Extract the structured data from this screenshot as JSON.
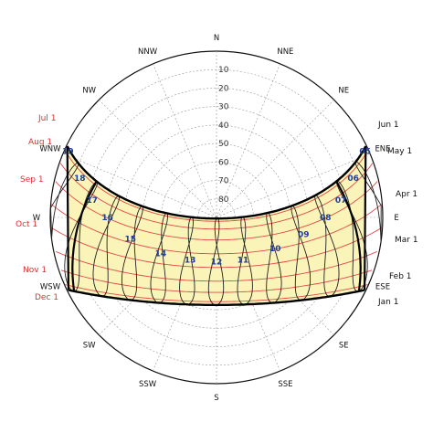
{
  "chart_data": {
    "type": "polar-sunpath",
    "altitude_ticks": [
      "10",
      "20",
      "30",
      "40",
      "50",
      "60",
      "70",
      "80"
    ],
    "directions": [
      {
        "label": "N",
        "azimuth": 0
      },
      {
        "label": "NNE",
        "azimuth": 22.5
      },
      {
        "label": "NE",
        "azimuth": 45
      },
      {
        "label": "ENE",
        "azimuth": 67.5
      },
      {
        "label": "E",
        "azimuth": 90
      },
      {
        "label": "ESE",
        "azimuth": 112.5
      },
      {
        "label": "SE",
        "azimuth": 135
      },
      {
        "label": "SSE",
        "azimuth": 157.5
      },
      {
        "label": "S",
        "azimuth": 180
      },
      {
        "label": "SSW",
        "azimuth": 202.5
      },
      {
        "label": "SW",
        "azimuth": 225
      },
      {
        "label": "WSW",
        "azimuth": 247.5
      },
      {
        "label": "W",
        "azimuth": 270
      },
      {
        "label": "WNW",
        "azimuth": 292.5
      },
      {
        "label": "NW",
        "azimuth": 315
      },
      {
        "label": "NNW",
        "azimuth": 337.5
      }
    ],
    "months_left": [
      {
        "label": "Jul 1",
        "azimuth": 292
      },
      {
        "label": "Aug 1",
        "azimuth": 288
      },
      {
        "label": "Sep 1",
        "azimuth": 279
      },
      {
        "label": "Oct 1",
        "azimuth": 268
      },
      {
        "label": "Nov 1",
        "azimuth": 256
      },
      {
        "label": "Dec 1",
        "azimuth": 249
      }
    ],
    "months_right": [
      {
        "label": "Jun 1",
        "azimuth": 68
      },
      {
        "label": "May 1",
        "azimuth": 74
      },
      {
        "label": "Apr 1",
        "azimuth": 85
      },
      {
        "label": "Mar 1",
        "azimuth": 98
      },
      {
        "label": "Feb 1",
        "azimuth": 108
      },
      {
        "label": "Jan 1",
        "azimuth": 113
      }
    ],
    "hour_labels": [
      {
        "label": "05",
        "azimuth": 66,
        "altitude": 2
      },
      {
        "label": "06",
        "azimuth": 74,
        "altitude": 13
      },
      {
        "label": "07",
        "azimuth": 82,
        "altitude": 22
      },
      {
        "label": "08",
        "azimuth": 90,
        "altitude": 31
      },
      {
        "label": "09",
        "azimuth": 101,
        "altitude": 42
      },
      {
        "label": "10",
        "azimuth": 118,
        "altitude": 54
      },
      {
        "label": "11",
        "azimuth": 148,
        "altitude": 63
      },
      {
        "label": "12",
        "azimuth": 180,
        "altitude": 66
      },
      {
        "label": "13",
        "azimuth": 212,
        "altitude": 63
      },
      {
        "label": "14",
        "azimuth": 237,
        "altitude": 54
      },
      {
        "label": "15",
        "azimuth": 256,
        "altitude": 42
      },
      {
        "label": "16",
        "azimuth": 270,
        "altitude": 31
      },
      {
        "label": "17",
        "azimuth": 278,
        "altitude": 22
      },
      {
        "label": "18",
        "azimuth": 286,
        "altitude": 13
      },
      {
        "label": "19",
        "azimuth": 294,
        "altitude": 2
      }
    ],
    "latitude_deg": 24,
    "date_declinations": [
      23.4,
      21.9,
      17.7,
      11.8,
      4.3,
      -3.1,
      -10.5,
      -16.6,
      -21.6,
      -23.4
    ],
    "solstice_declinations": [
      23.4,
      -23.4
    ],
    "analemma_hours": [
      6,
      7,
      8,
      9,
      10,
      11,
      12,
      13,
      14,
      15,
      16,
      17,
      18
    ],
    "altitude_range": [
      0,
      90
    ],
    "fill_color": "#fbf4b8",
    "month_color": "#d93030",
    "hour_color": "#1f3d99",
    "date_line_color": "#e34848",
    "grid": true
  }
}
